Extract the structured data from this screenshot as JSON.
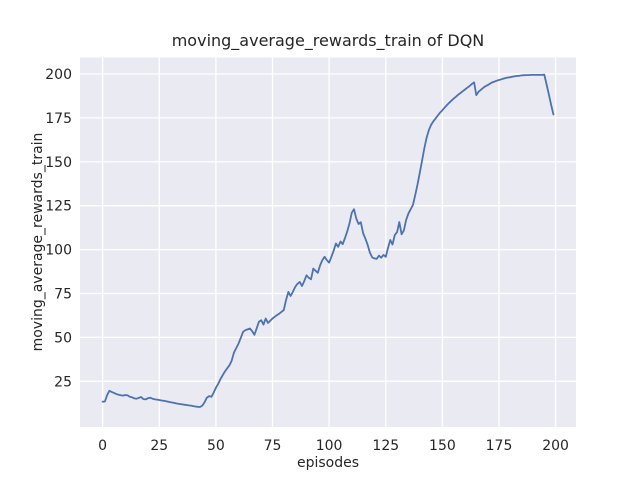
{
  "chart_data": {
    "type": "line",
    "title": "moving_average_rewards_train of DQN",
    "xlabel": "episodes",
    "ylabel": "moving_average_rewards_train",
    "x_ticks": [
      0,
      25,
      50,
      75,
      100,
      125,
      150,
      175,
      200
    ],
    "y_ticks": [
      25,
      50,
      75,
      100,
      125,
      150,
      175,
      200
    ],
    "xlim": [
      -10,
      209
    ],
    "ylim": [
      -1,
      209.4
    ],
    "grid": true,
    "legend": "none",
    "style": {
      "figure_bg": "#ffffff",
      "plot_bg": "#eaeaf2",
      "grid_color": "#ffffff",
      "line_color": "#4c72b0",
      "text_color": "#262626"
    },
    "series": [
      {
        "name": "DQN",
        "points": [
          [
            0,
            13.4
          ],
          [
            1,
            13.5
          ],
          [
            2,
            17.3
          ],
          [
            3,
            19.6
          ],
          [
            4,
            19.0
          ],
          [
            5,
            18.4
          ],
          [
            6,
            17.8
          ],
          [
            7,
            17.4
          ],
          [
            8,
            17.1
          ],
          [
            9,
            16.9
          ],
          [
            10,
            17.2
          ],
          [
            11,
            17.0
          ],
          [
            12,
            16.2
          ],
          [
            13,
            15.9
          ],
          [
            14,
            15.3
          ],
          [
            15,
            15.1
          ],
          [
            16,
            15.6
          ],
          [
            17,
            16.1
          ],
          [
            18,
            14.9
          ],
          [
            19,
            14.7
          ],
          [
            20,
            15.4
          ],
          [
            21,
            15.7
          ],
          [
            22,
            15.1
          ],
          [
            23,
            14.8
          ],
          [
            24,
            14.6
          ],
          [
            25,
            14.4
          ],
          [
            26,
            14.1
          ],
          [
            27,
            13.9
          ],
          [
            28,
            13.7
          ],
          [
            29,
            13.4
          ],
          [
            30,
            13.1
          ],
          [
            31,
            12.9
          ],
          [
            32,
            12.6
          ],
          [
            33,
            12.3
          ],
          [
            34,
            12.1
          ],
          [
            35,
            11.9
          ],
          [
            36,
            11.7
          ],
          [
            37,
            11.5
          ],
          [
            38,
            11.3
          ],
          [
            39,
            11.2
          ],
          [
            40,
            10.9
          ],
          [
            41,
            10.7
          ],
          [
            42,
            10.5
          ],
          [
            43,
            10.4
          ],
          [
            44,
            11.2
          ],
          [
            45,
            13.1
          ],
          [
            46,
            15.7
          ],
          [
            47,
            16.6
          ],
          [
            48,
            16.2
          ],
          [
            49,
            18.5
          ],
          [
            50,
            21.4
          ],
          [
            51,
            23.6
          ],
          [
            52,
            26.2
          ],
          [
            53,
            28.5
          ],
          [
            54,
            30.6
          ],
          [
            55,
            32.4
          ],
          [
            56,
            34.2
          ],
          [
            57,
            36.8
          ],
          [
            58,
            41.5
          ],
          [
            59,
            44.0
          ],
          [
            60,
            46.5
          ],
          [
            61,
            49.8
          ],
          [
            62,
            53.2
          ],
          [
            63,
            54.1
          ],
          [
            64,
            54.6
          ],
          [
            65,
            55.1
          ],
          [
            66,
            53.6
          ],
          [
            67,
            51.5
          ],
          [
            68,
            55.2
          ],
          [
            69,
            58.9
          ],
          [
            70,
            59.8
          ],
          [
            71,
            57.3
          ],
          [
            72,
            60.8
          ],
          [
            73,
            58.3
          ],
          [
            74,
            59.5
          ],
          [
            75,
            60.8
          ],
          [
            76,
            61.8
          ],
          [
            77,
            62.7
          ],
          [
            78,
            63.6
          ],
          [
            79,
            64.6
          ],
          [
            80,
            65.6
          ],
          [
            81,
            71.5
          ],
          [
            82,
            75.9
          ],
          [
            83,
            73.6
          ],
          [
            84,
            76.0
          ],
          [
            85,
            78.8
          ],
          [
            86,
            80.5
          ],
          [
            87,
            81.6
          ],
          [
            88,
            79.3
          ],
          [
            89,
            82.0
          ],
          [
            90,
            85.4
          ],
          [
            91,
            84.0
          ],
          [
            92,
            83.1
          ],
          [
            93,
            89.2
          ],
          [
            94,
            88.0
          ],
          [
            95,
            86.8
          ],
          [
            96,
            91.0
          ],
          [
            97,
            94.0
          ],
          [
            98,
            95.9
          ],
          [
            99,
            94.0
          ],
          [
            100,
            92.6
          ],
          [
            101,
            95.9
          ],
          [
            102,
            99.5
          ],
          [
            103,
            103.5
          ],
          [
            104,
            101.6
          ],
          [
            105,
            104.6
          ],
          [
            106,
            103.1
          ],
          [
            107,
            106.6
          ],
          [
            108,
            110.5
          ],
          [
            109,
            115.0
          ],
          [
            110,
            121.0
          ],
          [
            111,
            123.0
          ],
          [
            112,
            117.6
          ],
          [
            113,
            114.6
          ],
          [
            114,
            115.6
          ],
          [
            115,
            109.4
          ],
          [
            116,
            106.2
          ],
          [
            117,
            102.8
          ],
          [
            118,
            98.3
          ],
          [
            119,
            95.6
          ],
          [
            120,
            95.0
          ],
          [
            121,
            94.7
          ],
          [
            122,
            96.6
          ],
          [
            123,
            95.4
          ],
          [
            124,
            97.0
          ],
          [
            125,
            95.9
          ],
          [
            126,
            101.0
          ],
          [
            127,
            105.5
          ],
          [
            128,
            102.9
          ],
          [
            129,
            108.3
          ],
          [
            130,
            110.0
          ],
          [
            131,
            115.7
          ],
          [
            132,
            108.7
          ],
          [
            133,
            111.0
          ],
          [
            134,
            116.8
          ],
          [
            135,
            120.5
          ],
          [
            136,
            123.0
          ],
          [
            137,
            125.4
          ],
          [
            138,
            131.0
          ],
          [
            139,
            137.0
          ],
          [
            140,
            143.5
          ],
          [
            141,
            150.5
          ],
          [
            142,
            157.6
          ],
          [
            143,
            163.5
          ],
          [
            144,
            168.0
          ],
          [
            145,
            171.0
          ],
          [
            146,
            173.0
          ],
          [
            147,
            174.7
          ],
          [
            148,
            176.4
          ],
          [
            149,
            178.0
          ],
          [
            150,
            179.4
          ],
          [
            151,
            180.9
          ],
          [
            152,
            182.3
          ],
          [
            153,
            183.6
          ],
          [
            154,
            184.8
          ],
          [
            155,
            186.0
          ],
          [
            156,
            187.1
          ],
          [
            157,
            188.2
          ],
          [
            158,
            189.2
          ],
          [
            159,
            190.2
          ],
          [
            160,
            191.2
          ],
          [
            161,
            192.2
          ],
          [
            162,
            193.2
          ],
          [
            163,
            194.3
          ],
          [
            164,
            195.2
          ],
          [
            165,
            188.0
          ],
          [
            166,
            189.9
          ],
          [
            167,
            191.0
          ],
          [
            168,
            192.1
          ],
          [
            169,
            193.0
          ],
          [
            170,
            193.7
          ],
          [
            171,
            194.5
          ],
          [
            172,
            195.2
          ],
          [
            173,
            195.7
          ],
          [
            174,
            196.2
          ],
          [
            175,
            196.6
          ],
          [
            176,
            197.0
          ],
          [
            177,
            197.4
          ],
          [
            178,
            197.7
          ],
          [
            179,
            198.0
          ],
          [
            180,
            198.2
          ],
          [
            181,
            198.5
          ],
          [
            182,
            198.7
          ],
          [
            183,
            198.9
          ],
          [
            184,
            199.0
          ],
          [
            185,
            199.2
          ],
          [
            186,
            199.3
          ],
          [
            187,
            199.4
          ],
          [
            188,
            199.4
          ],
          [
            189,
            199.5
          ],
          [
            190,
            199.5
          ],
          [
            191,
            199.5
          ],
          [
            192,
            199.5
          ],
          [
            193,
            199.5
          ],
          [
            194,
            199.5
          ],
          [
            195,
            199.6
          ],
          [
            196,
            194.0
          ],
          [
            197,
            188.5
          ],
          [
            198,
            182.5
          ],
          [
            199,
            177.0
          ]
        ]
      }
    ]
  }
}
